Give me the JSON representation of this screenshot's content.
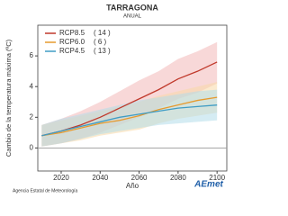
{
  "chart_data": {
    "type": "line",
    "title": "TARRAGONA",
    "subtitle": "ANUAL",
    "y_label": "Cambio de la temperatura máxima (ºC)",
    "x_label": "Año",
    "x": [
      2010,
      2020,
      2030,
      2040,
      2050,
      2060,
      2070,
      2080,
      2090,
      2100
    ],
    "xlim": [
      2008,
      2105
    ],
    "xticks": [
      2020,
      2040,
      2060,
      2080,
      2100
    ],
    "ylim": [
      -1.5,
      8
    ],
    "yticks": [
      0,
      2,
      4,
      6
    ],
    "series": [
      {
        "name": "RCP8.5",
        "count": "( 14 )",
        "color": "#c0392b",
        "band_color": "#f2b8b8",
        "values": [
          0.8,
          1.1,
          1.5,
          2.0,
          2.6,
          3.2,
          3.8,
          4.5,
          5.0,
          5.6
        ],
        "low": [
          0.1,
          0.3,
          0.6,
          1.0,
          1.5,
          2.0,
          2.6,
          3.2,
          3.6,
          4.2
        ],
        "high": [
          1.5,
          1.9,
          2.4,
          3.0,
          3.7,
          4.4,
          5.0,
          5.8,
          6.3,
          6.9
        ]
      },
      {
        "name": "RCP6.0",
        "count": "( 6 )",
        "color": "#e69a2e",
        "band_color": "#f8d9a8",
        "values": [
          0.8,
          1.0,
          1.3,
          1.6,
          1.8,
          2.1,
          2.5,
          2.8,
          3.1,
          3.3
        ],
        "low": [
          0.1,
          0.3,
          0.5,
          0.8,
          1.0,
          1.2,
          1.6,
          1.9,
          2.1,
          2.3
        ],
        "high": [
          1.5,
          1.8,
          2.1,
          2.4,
          2.7,
          3.0,
          3.4,
          3.7,
          4.0,
          4.3
        ]
      },
      {
        "name": "RCP4.5",
        "count": "( 13 )",
        "color": "#3f9cc4",
        "band_color": "#b3dcea",
        "values": [
          0.8,
          1.1,
          1.4,
          1.7,
          2.0,
          2.2,
          2.4,
          2.6,
          2.7,
          2.8
        ],
        "low": [
          0.1,
          0.3,
          0.6,
          0.9,
          1.1,
          1.3,
          1.5,
          1.6,
          1.7,
          1.8
        ],
        "high": [
          1.5,
          1.9,
          2.2,
          2.5,
          2.8,
          3.1,
          3.3,
          3.5,
          3.7,
          3.8
        ]
      }
    ],
    "zero_line": true,
    "source": "Agencia Estatal de Meteorología",
    "logo": "AEmet"
  }
}
